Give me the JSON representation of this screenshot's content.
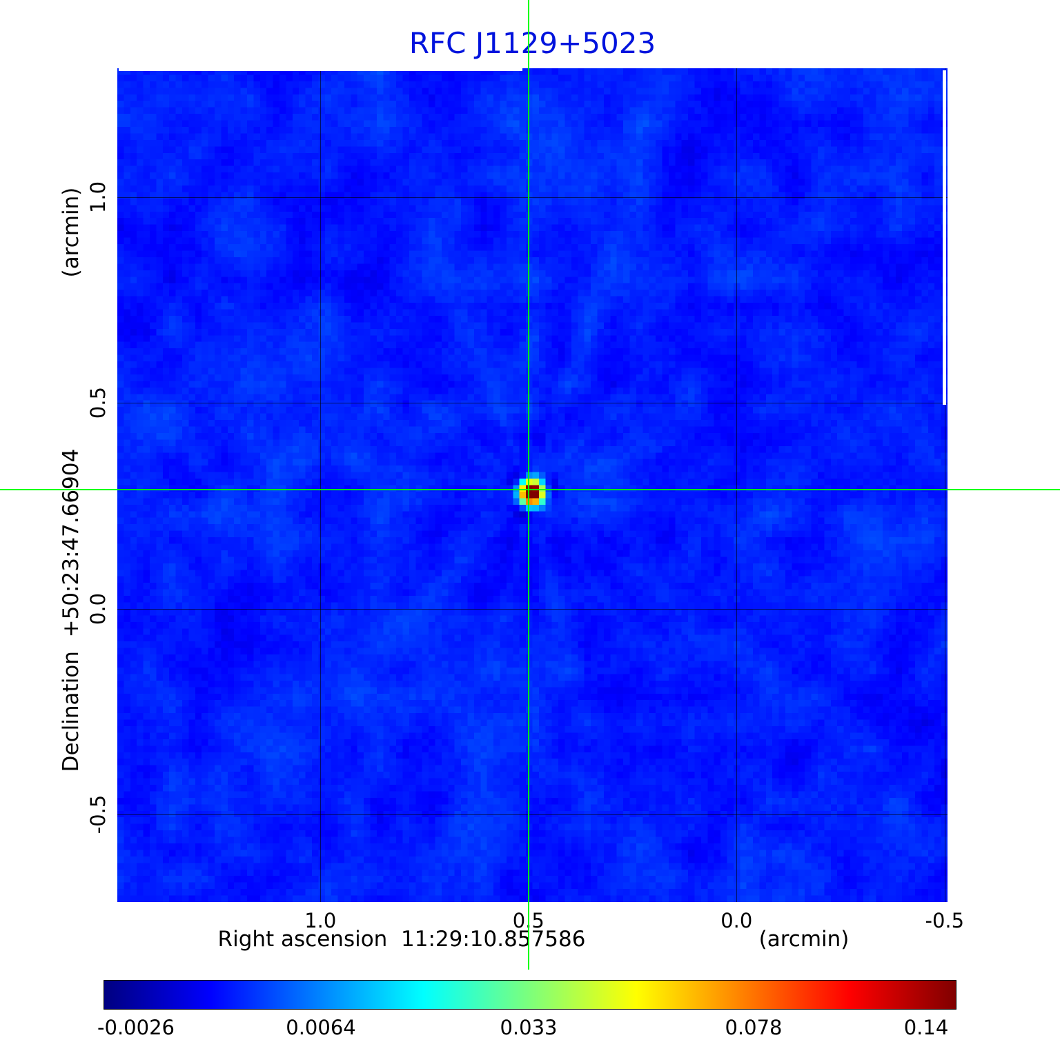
{
  "title": "RFC J1129+5023",
  "title_color": "#0013dd",
  "axes": {
    "y_label_unit": "(arcmin)",
    "y_label": "Declination  +50:23:47.66904",
    "y_ticks": [
      "1.0",
      "0.5",
      "0.0",
      "-0.5"
    ],
    "x_label": "Right ascension  11:29:10.857586",
    "x_label_unit": "(arcmin)",
    "x_ticks": [
      "1.0",
      "0.5",
      "0.0",
      "-0.5"
    ]
  },
  "colorbar": {
    "ticks": [
      "-0.0026",
      "0.0064",
      "0.033",
      "0.078",
      "0.14"
    ],
    "tick_positions": [
      0.038,
      0.255,
      0.498,
      0.762,
      0.964
    ]
  },
  "chart_data": {
    "type": "heatmap",
    "title": "RFC J1129+5023",
    "xlabel": "Right ascension 11:29:10.857586 (arcmin)",
    "ylabel": "Declination +50:23:47.66904 (arcmin)",
    "x_range_arcmin": [
      1.488,
      -0.507
    ],
    "y_range_arcmin": [
      -0.712,
      1.313
    ],
    "grid_x_arcmin": [
      1.0,
      0.5,
      0.0,
      -0.5
    ],
    "grid_y_arcmin": [
      1.0,
      0.5,
      0.0,
      -0.5
    ],
    "source": {
      "x_arcmin": 0.5,
      "y_arcmin": 0.29,
      "peak_jy": 0.14
    },
    "value_scale_ticks": [
      -0.0026,
      0.0064,
      0.033,
      0.078,
      0.14
    ],
    "colormap": "jet",
    "background_color_hint": "#1055ee",
    "crosshair_color": "#00ff00",
    "legend_position": "none",
    "grid": true
  }
}
